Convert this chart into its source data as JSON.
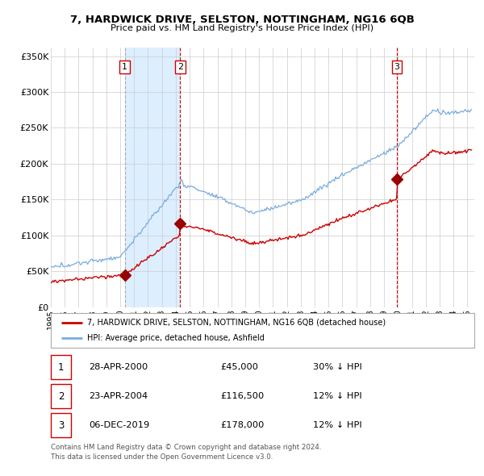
{
  "title": "7, HARDWICK DRIVE, SELSTON, NOTTINGHAM, NG16 6QB",
  "subtitle": "Price paid vs. HM Land Registry's House Price Index (HPI)",
  "ylabel_ticks": [
    "£0",
    "£50K",
    "£100K",
    "£150K",
    "£200K",
    "£250K",
    "£300K",
    "£350K"
  ],
  "ytick_values": [
    0,
    50000,
    100000,
    150000,
    200000,
    250000,
    300000,
    350000
  ],
  "ylim": [
    0,
    362000
  ],
  "xlim_start": 1995.0,
  "xlim_end": 2025.5,
  "sale_dates": [
    2000.32,
    2004.31,
    2019.92
  ],
  "sale_prices": [
    45000,
    116500,
    178000
  ],
  "sale_labels": [
    "1",
    "2",
    "3"
  ],
  "vline1_color": "#aaaaaa",
  "vline2_color": "#cc0000",
  "vline3_color": "#cc0000",
  "red_line_color": "#cc0000",
  "blue_line_color": "#7aadde",
  "marker_color": "#990000",
  "grid_color": "#cccccc",
  "shaded_color": "#ddeeff",
  "background_color": "#ffffff",
  "legend_label_red": "7, HARDWICK DRIVE, SELSTON, NOTTINGHAM, NG16 6QB (detached house)",
  "legend_label_blue": "HPI: Average price, detached house, Ashfield",
  "table_entries": [
    {
      "label": "1",
      "date": "28-APR-2000",
      "price": "£45,000",
      "hpi": "30% ↓ HPI"
    },
    {
      "label": "2",
      "date": "23-APR-2004",
      "price": "£116,500",
      "hpi": "12% ↓ HPI"
    },
    {
      "label": "3",
      "date": "06-DEC-2019",
      "price": "£178,000",
      "hpi": "12% ↓ HPI"
    }
  ],
  "footnote1": "Contains HM Land Registry data © Crown copyright and database right 2024.",
  "footnote2": "This data is licensed under the Open Government Licence v3.0."
}
